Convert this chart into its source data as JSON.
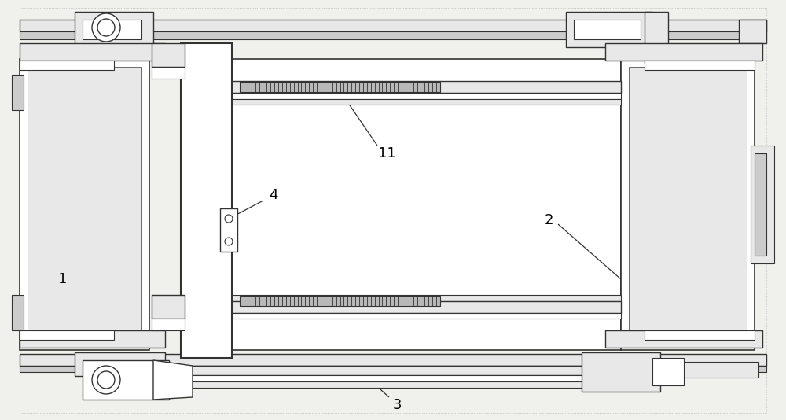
{
  "bg_color": "#f0f0ec",
  "line_color": "#333333",
  "figsize": [
    10.0,
    5.34
  ],
  "dpi": 100,
  "label_fontsize": 13
}
